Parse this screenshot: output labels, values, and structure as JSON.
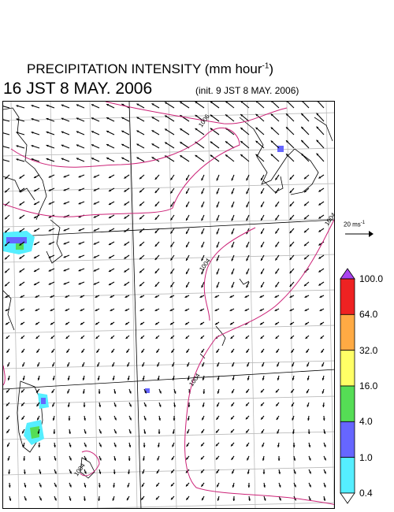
{
  "header": {
    "title_main": "PRECIPITATION INTENSITY (mm hour",
    "title_exp": "-1",
    "title_close": ")",
    "datetime": "16 JST 8 MAY. 2006",
    "init": "(init. 9 JST 8 MAY. 2006)"
  },
  "reference_vector": {
    "label_main": "20 ms",
    "label_exp": "-1"
  },
  "legend": {
    "levels": [
      "0.4",
      "1.0",
      "4.0",
      "16.0",
      "32.0",
      "64.0",
      "100.0"
    ],
    "colors": [
      "#55eeff",
      "#6666ff",
      "#55dd55",
      "#ffff66",
      "#ffaa44",
      "#ee2222"
    ],
    "over_color": "#aa44ee",
    "under_color": "#ffffff"
  },
  "contours": {
    "color": "#cc2277",
    "labels": [
      "1006",
      "1004",
      "1004",
      "1004",
      "1004",
      "1006"
    ]
  }
}
